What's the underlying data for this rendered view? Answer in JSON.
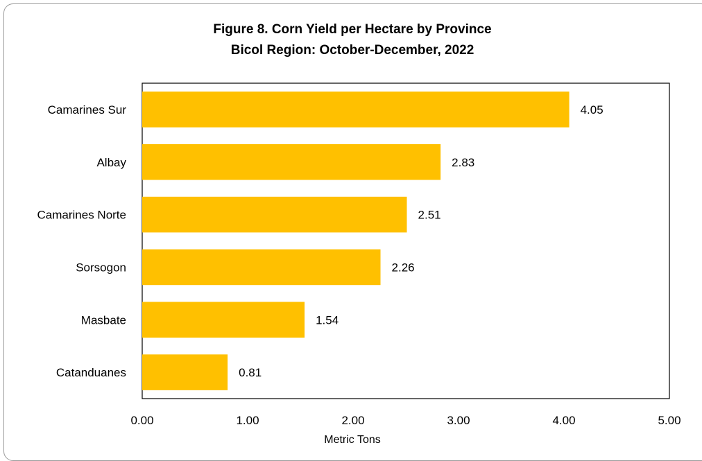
{
  "chart_data": {
    "type": "bar",
    "orientation": "horizontal",
    "title": "Figure 8. Corn Yield per Hectare by Province",
    "subtitle": "Bicol Region: October-December, 2022",
    "categories": [
      "Camarines Sur",
      "Albay",
      "Camarines Norte",
      "Sorsogon",
      "Masbate",
      "Catanduanes"
    ],
    "values": [
      4.05,
      2.83,
      2.51,
      2.26,
      1.54,
      0.81
    ],
    "value_labels": [
      "4.05",
      "2.83",
      "2.51",
      "2.26",
      "1.54",
      "0.81"
    ],
    "xlabel": "Metric Tons",
    "ylabel": "",
    "xlim": [
      0,
      5
    ],
    "xticks": [
      "0.00",
      "1.00",
      "2.00",
      "3.00",
      "4.00",
      "5.00"
    ],
    "grid": false,
    "legend": "none",
    "bar_color": "#FFC000"
  }
}
